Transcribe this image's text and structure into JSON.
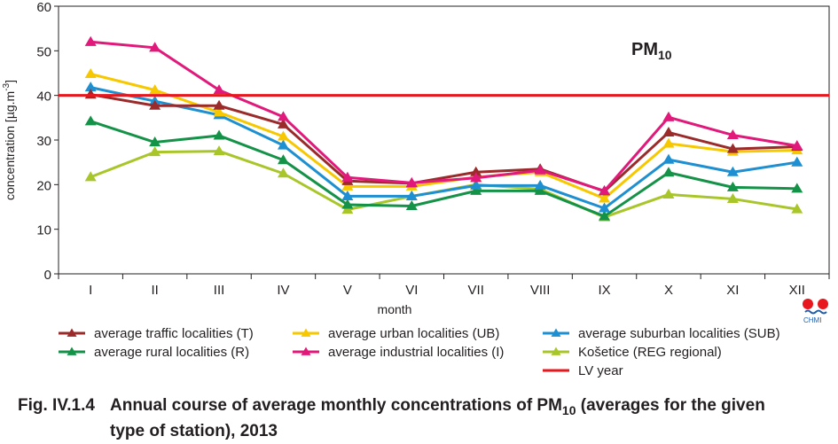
{
  "chart_data": {
    "type": "line",
    "title": "PM10",
    "xlabel": "month",
    "ylabel": "concentration [µg.m-3]",
    "ylim": [
      0,
      60
    ],
    "yticks": [
      0,
      10,
      20,
      30,
      40,
      50,
      60
    ],
    "grid": false,
    "legend_position": "bottom",
    "categories": [
      "I",
      "II",
      "III",
      "IV",
      "V",
      "VI",
      "VII",
      "VIII",
      "IX",
      "X",
      "XI",
      "XII"
    ],
    "series": [
      {
        "name": "average traffic localities (T)",
        "color": "#9b2a2a",
        "values": [
          40.2,
          37.7,
          37.7,
          33.5,
          20.8,
          20.3,
          22.8,
          23.5,
          18.5,
          31.7,
          28.0,
          28.5
        ]
      },
      {
        "name": "average urban localities (UB)",
        "color": "#f7c800",
        "values": [
          44.8,
          41.2,
          36.2,
          30.8,
          19.6,
          19.6,
          21.7,
          22.8,
          16.9,
          29.2,
          27.4,
          27.7
        ]
      },
      {
        "name": "average suburban localities (SUB)",
        "color": "#1e8fd0",
        "values": [
          41.8,
          38.7,
          35.6,
          28.8,
          17.4,
          17.4,
          19.8,
          19.8,
          14.7,
          25.6,
          22.8,
          25.0
        ]
      },
      {
        "name": "average rural localities (R)",
        "color": "#149247",
        "values": [
          34.2,
          29.5,
          31.0,
          25.5,
          15.5,
          15.2,
          18.6,
          18.6,
          12.9,
          22.7,
          19.4,
          19.1
        ]
      },
      {
        "name": "average industrial localities (I)",
        "color": "#e0197a",
        "values": [
          52.0,
          50.7,
          41.2,
          35.2,
          21.6,
          20.4,
          21.5,
          23.2,
          18.6,
          35.1,
          31.1,
          28.7
        ]
      },
      {
        "name": "Košetice (REG regional)",
        "color": "#a8c62a",
        "values": [
          21.7,
          27.3,
          27.5,
          22.5,
          14.4,
          17.4,
          20.0,
          19.0,
          12.7,
          17.8,
          16.8,
          14.5
        ]
      }
    ],
    "limit_line": {
      "name": "LV year",
      "value": 40,
      "color": "#e8161d"
    }
  },
  "caption": {
    "fig_no": "Fig. IV.1.4",
    "text_a": "Annual course of average monthly concentrations of PM",
    "text_sub": "10",
    "text_b": " (averages for the given",
    "line2": "type of station), 2013"
  },
  "logo": {
    "text": "CHMI",
    "icon": "chmi-logo-icon"
  },
  "pm_label": {
    "main": "PM",
    "sub": "10"
  },
  "ylabel_parts": {
    "main": "concentration [µg.m",
    "sup": "-3",
    "end": "]"
  }
}
